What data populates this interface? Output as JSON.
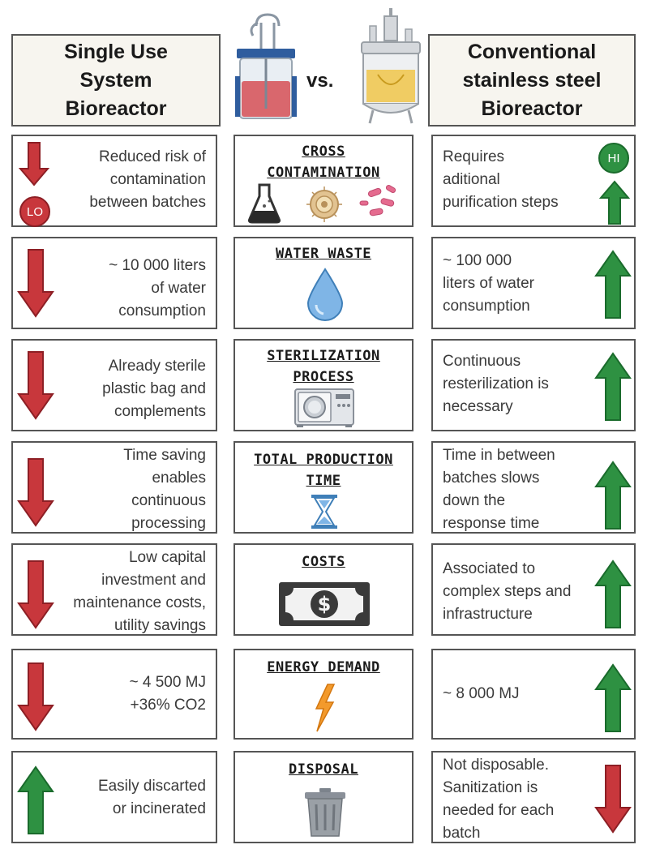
{
  "header": {
    "left_title": "Single Use\nSystem\nBioreactor",
    "vs": "vs.",
    "right_title": "Conventional\nstainless steel\nBioreactor"
  },
  "colors": {
    "down_arrow": "#c8373c",
    "up_arrow": "#2e9142",
    "border": "#555555"
  },
  "badges": {
    "low": "LO",
    "high": "HI"
  },
  "rows": [
    {
      "topic": "CROSS\nCONTAMINATION",
      "icon": "flask-bacteria-icon",
      "single_use_text": "Reduced risk of\ncontamination\nbetween batches",
      "single_use_trend": "down",
      "conventional_text": "Requires\naditional\npurification steps",
      "conventional_trend": "up"
    },
    {
      "topic": "WATER WASTE",
      "icon": "water-drop-icon",
      "single_use_text": "~ 10 000 liters\nof water\nconsumption",
      "single_use_trend": "down",
      "conventional_text": "~ 100 000\nliters of water\nconsumption",
      "conventional_trend": "up"
    },
    {
      "topic": "STERILIZATION\nPROCESS",
      "icon": "autoclave-icon",
      "single_use_text": "Already sterile\nplastic bag and\ncomplements",
      "single_use_trend": "down",
      "conventional_text": "Continuous\nresterilization is\nnecessary",
      "conventional_trend": "up"
    },
    {
      "topic": "TOTAL PRODUCTION\nTIME",
      "icon": "hourglass-icon",
      "single_use_text": "Time saving\nenables\ncontinuous\nprocessing",
      "single_use_trend": "down",
      "conventional_text": "Time in between\nbatches slows\ndown the\nresponse time",
      "conventional_trend": "up"
    },
    {
      "topic": "COSTS",
      "icon": "dollar-bill-icon",
      "single_use_text": "Low capital\ninvestment and\nmaintenance costs,\nutility savings",
      "single_use_trend": "down",
      "conventional_text": "Associated to\ncomplex steps and\ninfrastructure",
      "conventional_trend": "up"
    },
    {
      "topic": "ENERGY DEMAND",
      "icon": "lightning-bolt-icon",
      "single_use_text": "~ 4 500 MJ\n+36% CO2",
      "single_use_trend": "down",
      "conventional_text": "~ 8 000 MJ",
      "conventional_trend": "up"
    },
    {
      "topic": "DISPOSAL",
      "icon": "trash-can-icon",
      "single_use_text": "Easily discarted\nor incinerated",
      "single_use_trend": "up",
      "conventional_text": "Not disposable.\nSanitization is\nneeded for each\nbatch",
      "conventional_trend": "down"
    }
  ]
}
